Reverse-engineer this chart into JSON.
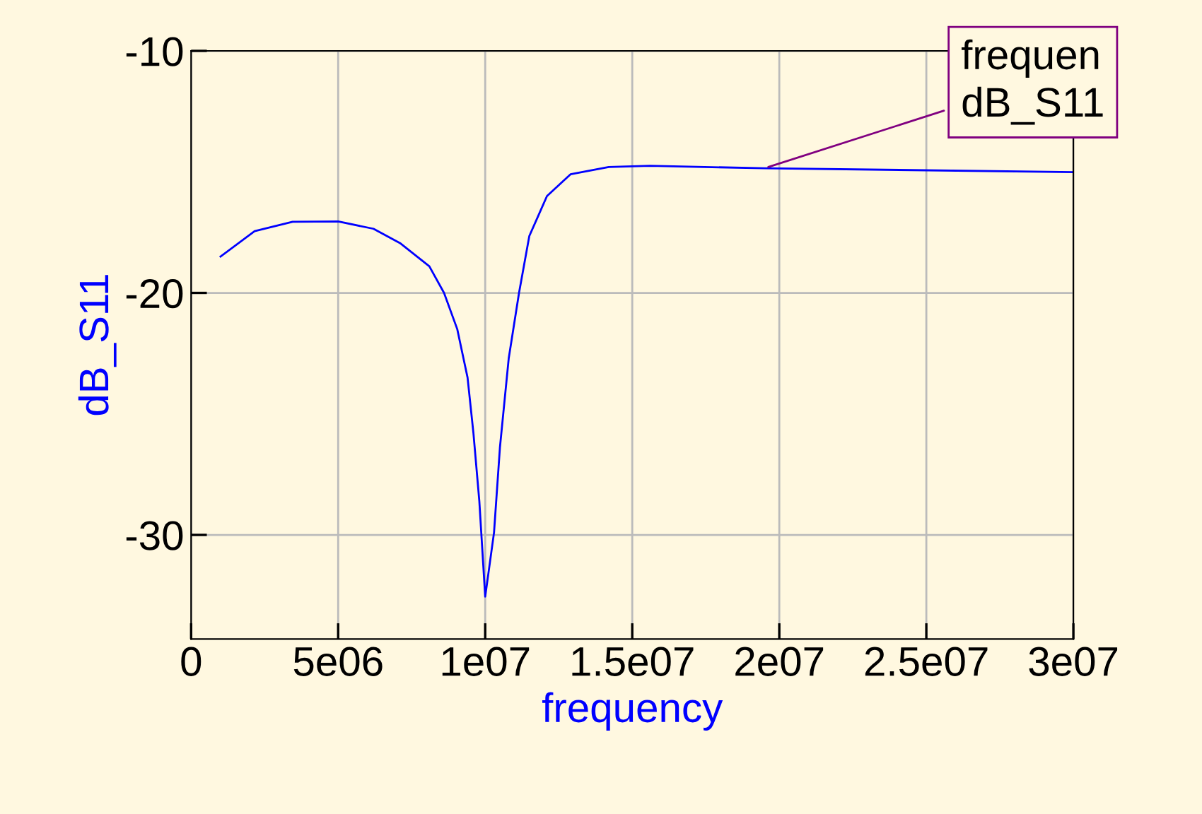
{
  "chart_data": {
    "type": "line",
    "xlabel": "frequency",
    "ylabel": "dB_S11",
    "x": [
      1000000,
      2160000,
      3450000,
      5000000,
      6200000,
      7100000,
      8100000,
      8600000,
      9050000,
      9400000,
      9600000,
      9800000,
      10000000,
      10300000,
      10500000,
      10800000,
      11150000,
      11500000,
      12100000,
      12900000,
      14200000,
      15600000,
      19500000,
      30000000
    ],
    "series": [
      {
        "color": "#0000ff",
        "values": [
          -18.5,
          -17.45,
          -17.06,
          -17.05,
          -17.35,
          -17.94,
          -18.9,
          -20,
          -21.5,
          -23.5,
          -25.8,
          -28.6,
          -32.55,
          -29.9,
          -26.4,
          -22.7,
          -20.0,
          -17.65,
          -16.0,
          -15.1,
          -14.8,
          -14.75,
          -14.85,
          -15.01
        ]
      }
    ],
    "xlim": [
      0,
      30000000
    ],
    "xticks": [
      {
        "value": 0,
        "label": "0"
      },
      {
        "value": 5000000,
        "label": "5e06"
      },
      {
        "value": 10000000,
        "label": "1e07"
      },
      {
        "value": 15000000,
        "label": "1.5e07"
      },
      {
        "value": 20000000,
        "label": "2e07"
      },
      {
        "value": 25000000,
        "label": "2.5e07"
      },
      {
        "value": 30000000,
        "label": "3e07"
      }
    ],
    "ylim": [
      -34.3,
      -10
    ],
    "yticks": [
      -10,
      -20,
      -30
    ],
    "grid": true,
    "legend": false,
    "marker": "none",
    "line_style": "solid",
    "annotations": [
      {
        "text": "frequen\ndB_S11",
        "x": 19500000,
        "y": -14.85
      }
    ]
  }
}
